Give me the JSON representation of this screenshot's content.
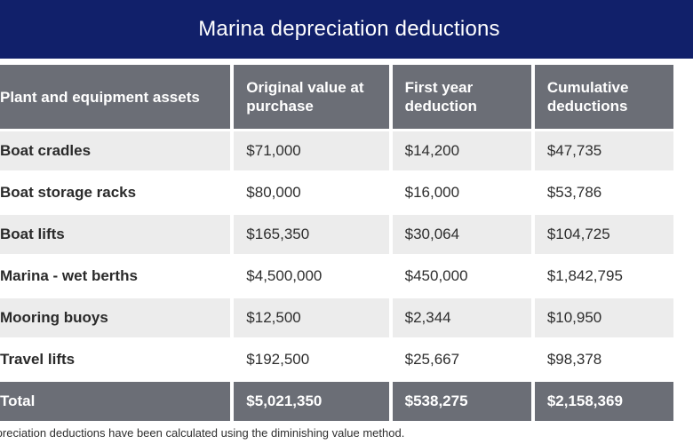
{
  "title": "Marina depreciation deductions",
  "columns": [
    "Plant and equipment assets",
    "Original value at purchase",
    "First year deduction",
    "Cumulative deductions"
  ],
  "rows": [
    {
      "asset": "Boat cradles",
      "original": "$71,000",
      "first_year": "$14,200",
      "cumulative": "$47,735"
    },
    {
      "asset": "Boat storage racks",
      "original": "$80,000",
      "first_year": "$16,000",
      "cumulative": "$53,786"
    },
    {
      "asset": "Boat lifts",
      "original": "$165,350",
      "first_year": "$30,064",
      "cumulative": "$104,725"
    },
    {
      "asset": "Marina - wet berths",
      "original": "$4,500,000",
      "first_year": "$450,000",
      "cumulative": "$1,842,795"
    },
    {
      "asset": "Mooring buoys",
      "original": "$12,500",
      "first_year": "$2,344",
      "cumulative": "$10,950"
    },
    {
      "asset": "Travel lifts",
      "original": "$192,500",
      "first_year": "$25,667",
      "cumulative": "$98,378"
    }
  ],
  "totals": {
    "label": "Total",
    "original": "$5,021,350",
    "first_year": "$538,275",
    "cumulative": "$2,158,369"
  },
  "note": "*Depreciation deductions have been calculated using the diminishing value method.",
  "colors": {
    "banner": "#11206a",
    "header": "#6b6e76",
    "row_alt": "#ececec"
  }
}
